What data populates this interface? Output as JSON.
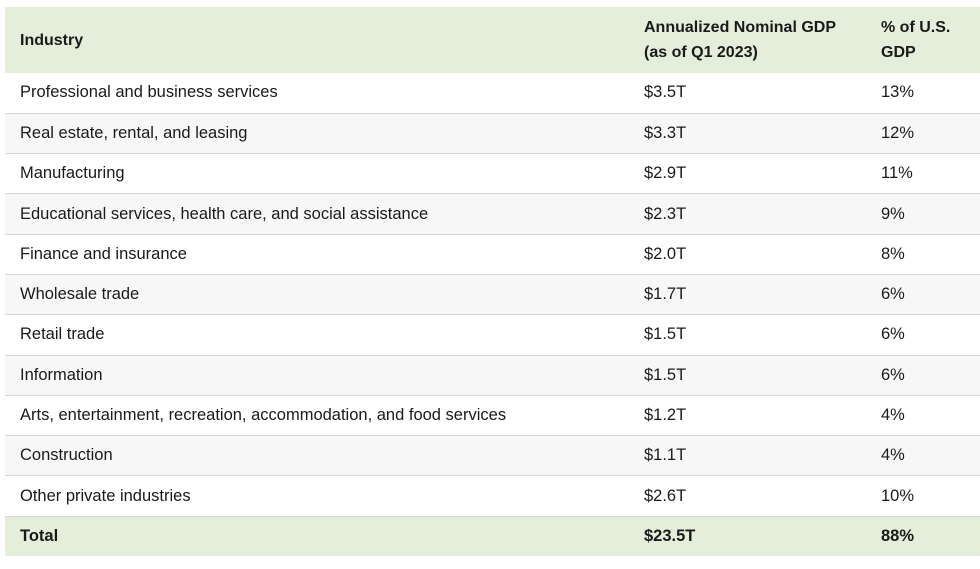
{
  "table": {
    "headers": {
      "industry": "Industry",
      "gdp_line1": "Annualized Nominal GDP",
      "gdp_line2": "(as of Q1 2023)",
      "pct_line1": "% of U.S.",
      "pct_line2": "GDP"
    },
    "rows": [
      {
        "industry": "Professional and business services",
        "gdp": "$3.5T",
        "pct": "13%"
      },
      {
        "industry": "Real estate, rental, and leasing",
        "gdp": "$3.3T",
        "pct": "12%"
      },
      {
        "industry": "Manufacturing",
        "gdp": "$2.9T",
        "pct": "11%"
      },
      {
        "industry": "Educational services, health care, and social assistance",
        "gdp": "$2.3T",
        "pct": "9%"
      },
      {
        "industry": "Finance and insurance",
        "gdp": "$2.0T",
        "pct": "8%"
      },
      {
        "industry": "Wholesale trade",
        "gdp": "$1.7T",
        "pct": "6%"
      },
      {
        "industry": "Retail trade",
        "gdp": "$1.5T",
        "pct": "6%"
      },
      {
        "industry": "Information",
        "gdp": "$1.5T",
        "pct": "6%"
      },
      {
        "industry": "Arts, entertainment, recreation, accommodation, and food services",
        "gdp": "$1.2T",
        "pct": "4%"
      },
      {
        "industry": "Construction",
        "gdp": "$1.1T",
        "pct": "4%"
      },
      {
        "industry": "Other private industries",
        "gdp": "$2.6T",
        "pct": "10%"
      }
    ],
    "total": {
      "industry": "Total",
      "gdp": "$23.5T",
      "pct": "88%"
    }
  }
}
